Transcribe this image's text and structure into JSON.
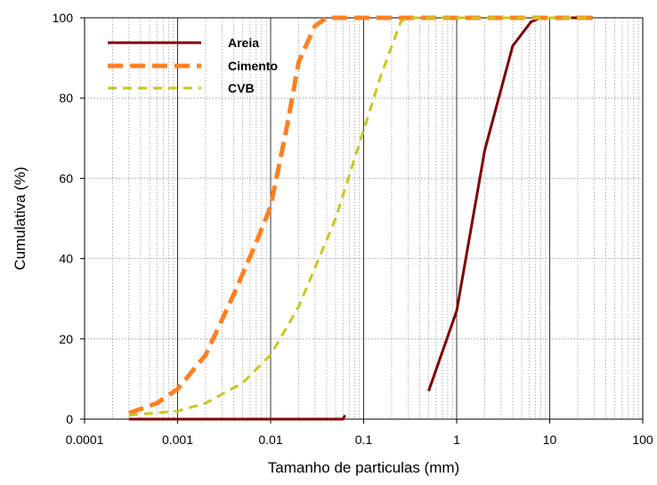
{
  "chart_data": {
    "type": "line",
    "xlabel": "Tamanho de particulas (mm)",
    "ylabel": "Cumulativa (%)",
    "x_scale": "log",
    "xlim": [
      0.0001,
      100
    ],
    "ylim": [
      0,
      100
    ],
    "x_tick_labels": [
      "0.0001",
      "0.001",
      "0.01",
      "0.1",
      "1",
      "10",
      "100"
    ],
    "y_tick_labels": [
      "0",
      "20",
      "40",
      "60",
      "80",
      "100"
    ],
    "grid": true,
    "legend_position": "top-left",
    "series": [
      {
        "name": "Areia",
        "color": "#800000",
        "style": "solid",
        "points": [
          [
            0.0003,
            0
          ],
          [
            0.06,
            0
          ],
          [
            0.063,
            1
          ]
        ],
        "points_b": [
          [
            0.5,
            7
          ],
          [
            1,
            27
          ],
          [
            2,
            67
          ],
          [
            4,
            93
          ],
          [
            6.3,
            99
          ],
          [
            8,
            100
          ],
          [
            30,
            100
          ]
        ]
      },
      {
        "name": "Cimento",
        "color": "#ff8020",
        "style": "dashed-heavy",
        "points": [
          [
            0.0003,
            1.5
          ],
          [
            0.0006,
            4
          ],
          [
            0.001,
            7.5
          ],
          [
            0.002,
            16
          ],
          [
            0.004,
            31
          ],
          [
            0.007,
            44
          ],
          [
            0.01,
            53
          ],
          [
            0.015,
            73
          ],
          [
            0.02,
            89
          ],
          [
            0.03,
            98
          ],
          [
            0.04,
            100
          ],
          [
            30,
            100
          ]
        ]
      },
      {
        "name": "CVB",
        "color": "#c8c820",
        "style": "dashed",
        "points": [
          [
            0.0003,
            1
          ],
          [
            0.001,
            2
          ],
          [
            0.002,
            4
          ],
          [
            0.005,
            9
          ],
          [
            0.01,
            16
          ],
          [
            0.02,
            28
          ],
          [
            0.05,
            50
          ],
          [
            0.1,
            72
          ],
          [
            0.15,
            85
          ],
          [
            0.25,
            99
          ],
          [
            0.3,
            100
          ],
          [
            30,
            100
          ]
        ]
      }
    ]
  }
}
